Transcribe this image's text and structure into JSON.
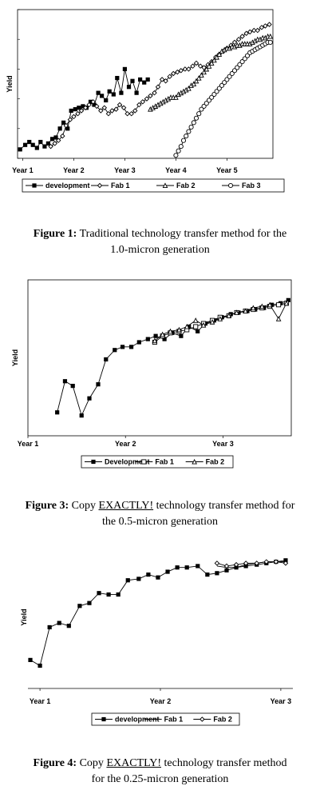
{
  "figures": [
    {
      "caption_prefix": "Figure 1:",
      "caption_line1": "Traditional technology transfer method for the",
      "caption_line2": "1.0-micron generation"
    },
    {
      "caption_prefix": "Figure 3:",
      "caption_pre": "Copy",
      "caption_emph": "EXACTLY!",
      "caption_post": "technology transfer method for",
      "caption_line2": "the 0.5-micron generation"
    },
    {
      "caption_prefix": "Figure 4:",
      "caption_pre": "Copy",
      "caption_emph": "EXACTLY!",
      "caption_post": "technology transfer method",
      "caption_line2": "for the  0.25-micron generation"
    }
  ],
  "chart_data": [
    {
      "type": "line",
      "title": "",
      "xlabel": "",
      "ylabel": "Yield",
      "xlim": [
        0.9,
        5.9
      ],
      "ylim": [
        0,
        100
      ],
      "x_ticks": [
        "Year 1",
        "Year 2",
        "Year 3",
        "Year 4",
        "Year 5"
      ],
      "x_tick_values": [
        1,
        2,
        3,
        4,
        5
      ],
      "grid": false,
      "legend": "bottom",
      "series": [
        {
          "name": "development",
          "marker": "square-filled",
          "x": [
            0.95,
            1.05,
            1.13,
            1.2,
            1.28,
            1.35,
            1.43,
            1.5,
            1.58,
            1.65,
            1.73,
            1.8,
            1.88,
            1.95,
            2.03,
            2.1,
            2.18,
            2.25,
            2.33,
            2.4,
            2.48,
            2.55,
            2.63,
            2.7,
            2.78,
            2.85,
            2.93,
            3.0,
            3.08,
            3.15,
            3.23,
            3.3,
            3.38,
            3.45
          ],
          "y": [
            6,
            9,
            11,
            9,
            7,
            11,
            8,
            10,
            13,
            14,
            20,
            24,
            20,
            32,
            33,
            34,
            35,
            34,
            38,
            36,
            44,
            42,
            39,
            45,
            43,
            54,
            44,
            60,
            48,
            52,
            44,
            53,
            51,
            53
          ]
        },
        {
          "name": "Fab 1",
          "marker": "diamond-open",
          "x": [
            1.55,
            1.63,
            1.7,
            1.78,
            1.85,
            1.93,
            2.0,
            2.08,
            2.15,
            2.23,
            2.3,
            2.38,
            2.45,
            2.53,
            2.6,
            2.68,
            2.75,
            2.83,
            2.9,
            2.98,
            3.05,
            3.13,
            3.2,
            3.28,
            3.35,
            3.43,
            3.5,
            3.58,
            3.65,
            3.73,
            3.8,
            3.88,
            3.95,
            4.03,
            4.1,
            4.18,
            4.25,
            4.33,
            4.4,
            4.48,
            4.55,
            4.63,
            4.7,
            4.78,
            4.85,
            4.93,
            5.0,
            5.08,
            5.15,
            5.23,
            5.3,
            5.38,
            5.45,
            5.53,
            5.6,
            5.68,
            5.75,
            5.83
          ],
          "y": [
            8,
            10,
            12,
            15,
            22,
            26,
            28,
            30,
            32,
            34,
            36,
            38,
            35,
            32,
            34,
            30,
            32,
            33,
            36,
            34,
            30,
            30,
            32,
            36,
            38,
            40,
            42,
            44,
            48,
            53,
            52,
            55,
            57,
            58,
            59,
            60,
            60,
            62,
            64,
            62,
            61,
            63,
            65,
            68,
            70,
            72,
            74,
            76,
            78,
            80,
            82,
            84,
            85,
            86,
            86,
            88,
            89,
            90
          ]
        },
        {
          "name": "Fab 2",
          "marker": "triangle-open",
          "x": [
            3.5,
            3.55,
            3.6,
            3.65,
            3.7,
            3.75,
            3.8,
            3.85,
            3.9,
            3.95,
            4.0,
            4.05,
            4.1,
            4.15,
            4.2,
            4.25,
            4.3,
            4.35,
            4.4,
            4.45,
            4.5,
            4.55,
            4.6,
            4.65,
            4.7,
            4.75,
            4.8,
            4.85,
            4.9,
            4.95,
            5.0,
            5.05,
            5.1,
            5.15,
            5.2,
            5.25,
            5.3,
            5.35,
            5.4,
            5.45,
            5.5,
            5.55,
            5.6,
            5.65,
            5.7,
            5.75,
            5.8,
            5.85
          ],
          "y": [
            33,
            34,
            35,
            36,
            37,
            38,
            39,
            40,
            41,
            41,
            41,
            43,
            44,
            45,
            46,
            47,
            49,
            50,
            52,
            54,
            56,
            58,
            60,
            62,
            64,
            66,
            68,
            70,
            72,
            73,
            74,
            74,
            75,
            75,
            76,
            76,
            77,
            77,
            77,
            77,
            78,
            79,
            80,
            80,
            81,
            81,
            82,
            82
          ]
        },
        {
          "name": "Fab 3",
          "marker": "circle-open",
          "x": [
            4.0,
            4.05,
            4.1,
            4.15,
            4.2,
            4.25,
            4.3,
            4.35,
            4.4,
            4.45,
            4.5,
            4.55,
            4.6,
            4.65,
            4.7,
            4.75,
            4.8,
            4.85,
            4.9,
            4.95,
            5.0,
            5.05,
            5.1,
            5.15,
            5.2,
            5.25,
            5.3,
            5.35,
            5.4,
            5.45,
            5.5,
            5.55,
            5.6,
            5.65,
            5.7,
            5.75,
            5.8,
            5.85
          ],
          "y": [
            2,
            5,
            8,
            12,
            15,
            18,
            21,
            24,
            27,
            30,
            33,
            35,
            37,
            39,
            41,
            43,
            45,
            47,
            49,
            51,
            53,
            55,
            57,
            59,
            61,
            63,
            65,
            67,
            69,
            71,
            72,
            73,
            74,
            75,
            76,
            77,
            78,
            78
          ]
        }
      ]
    },
    {
      "type": "line",
      "title": "",
      "xlabel": "",
      "ylabel": "Yield",
      "xlim": [
        1.0,
        3.7
      ],
      "ylim": [
        0,
        100
      ],
      "x_ticks": [
        "Year 1",
        "Year 2",
        "Year 3"
      ],
      "x_tick_values": [
        1,
        2,
        3
      ],
      "grid": false,
      "legend": "bottom",
      "series": [
        {
          "name": "Development",
          "marker": "square-filled",
          "x": [
            1.3,
            1.38,
            1.46,
            1.55,
            1.63,
            1.72,
            1.8,
            1.89,
            1.97,
            2.06,
            2.14,
            2.23,
            2.31,
            2.4,
            2.48,
            2.57,
            2.65,
            2.74,
            2.82,
            2.91,
            2.99,
            3.08,
            3.16,
            3.25,
            3.33,
            3.42,
            3.5,
            3.59,
            3.67
          ],
          "y": [
            15,
            35,
            32,
            13,
            24,
            33,
            49,
            55,
            57,
            57,
            60,
            62,
            64,
            62,
            66,
            64,
            70,
            67,
            72,
            74,
            76,
            78,
            79,
            80,
            81,
            82,
            84,
            85,
            87
          ]
        },
        {
          "name": "Fab 1",
          "marker": "square-open",
          "x": [
            2.3,
            2.38,
            2.46,
            2.55,
            2.63,
            2.72,
            2.8,
            2.89,
            2.97,
            3.06,
            3.14,
            3.23,
            3.31,
            3.4,
            3.48,
            3.57,
            3.65
          ],
          "y": [
            60,
            64,
            66,
            67,
            68,
            70,
            72,
            74,
            76,
            77,
            79,
            80,
            81,
            82,
            83,
            84,
            85
          ]
        },
        {
          "name": "Fab 2",
          "marker": "triangle-open",
          "x": [
            2.3,
            2.38,
            2.46,
            2.55,
            2.63,
            2.72,
            2.8,
            2.89,
            2.97,
            3.06,
            3.14,
            3.23,
            3.31,
            3.4,
            3.48,
            3.57,
            3.65
          ],
          "y": [
            61,
            65,
            67,
            68,
            70,
            74,
            71,
            73,
            75,
            77,
            79,
            80,
            82,
            83,
            84,
            75,
            85
          ]
        }
      ]
    },
    {
      "type": "line",
      "title": "",
      "xlabel": "",
      "ylabel": "Yield",
      "xlim": [
        0.9,
        3.1
      ],
      "ylim": [
        0,
        100
      ],
      "x_ticks": [
        "Year 1",
        "Year 2",
        "Year 3"
      ],
      "x_tick_values": [
        1,
        2,
        3
      ],
      "grid": false,
      "legend": "bottom",
      "series": [
        {
          "name": "development",
          "marker": "square-filled",
          "x": [
            0.92,
            1.0,
            1.08,
            1.16,
            1.24,
            1.33,
            1.41,
            1.49,
            1.57,
            1.65,
            1.73,
            1.82,
            1.9,
            1.98,
            2.06,
            2.14,
            2.22,
            2.31,
            2.39,
            2.47,
            2.55,
            2.63,
            2.71,
            2.8,
            2.88,
            2.96,
            3.04
          ],
          "y": [
            20,
            16,
            43,
            46,
            44,
            58,
            60,
            67,
            66,
            66,
            76,
            77,
            80,
            78,
            82,
            85,
            85,
            86,
            80,
            81,
            83,
            85,
            86,
            87,
            88,
            89,
            90
          ]
        },
        {
          "name": "Fab 1",
          "marker": "plain",
          "x": [
            2.47,
            2.55,
            2.63,
            2.71,
            2.8,
            2.88,
            2.96,
            3.04
          ],
          "y": [
            86,
            85,
            85,
            87,
            88,
            89,
            89,
            89
          ]
        },
        {
          "name": "Fab 2",
          "marker": "diamond-open",
          "x": [
            2.47,
            2.55,
            2.63,
            2.71,
            2.8,
            2.88,
            2.96,
            3.04
          ],
          "y": [
            88,
            86,
            87,
            88,
            88,
            89,
            89,
            88
          ]
        }
      ]
    }
  ]
}
